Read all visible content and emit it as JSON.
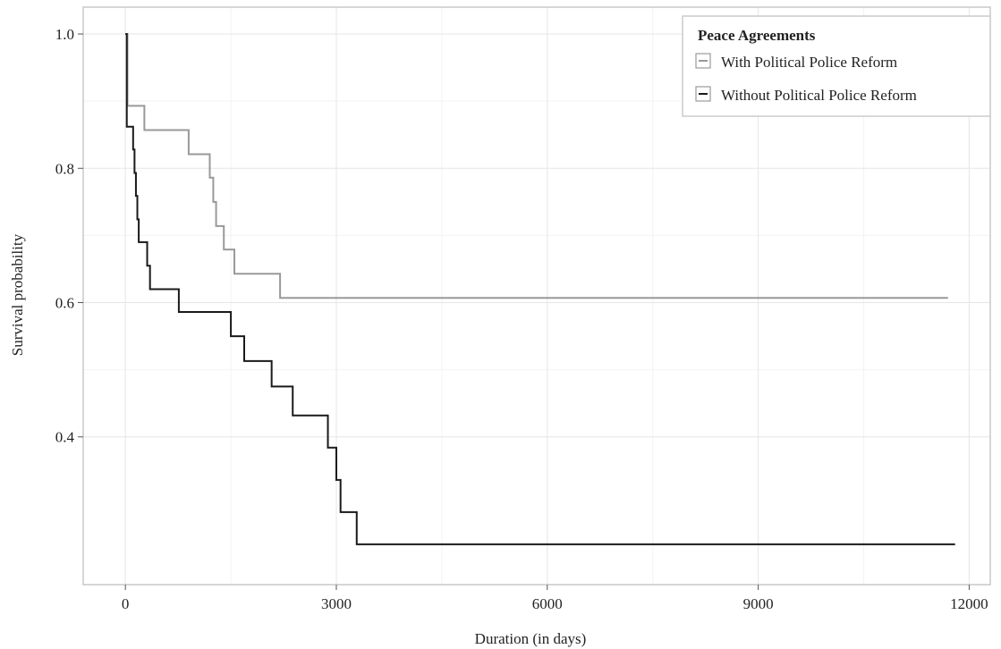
{
  "chart_data": {
    "type": "line",
    "step": true,
    "title": "",
    "xlabel": "Duration (in days)",
    "ylabel": "Survival probability",
    "xlim": [
      -600,
      12300
    ],
    "ylim": [
      0.18,
      1.04
    ],
    "xticks": [
      0,
      3000,
      6000,
      9000,
      12000
    ],
    "xtick_labels": [
      "0",
      "3000",
      "6000",
      "9000",
      "12000"
    ],
    "yticks": [
      0.4,
      0.6,
      0.8,
      1.0
    ],
    "ytick_labels": [
      "0.4",
      "0.6",
      "0.8",
      "1.0"
    ],
    "grid": true,
    "legend": {
      "title": "Peace Agreements",
      "position": "top-right"
    },
    "series": [
      {
        "name": "With Political Police Reform",
        "color": "#999999",
        "x": [
          0,
          30,
          270,
          900,
          1200,
          1250,
          1290,
          1400,
          1480,
          1550,
          2200,
          11700
        ],
        "y": [
          1.0,
          0.893,
          0.857,
          0.821,
          0.786,
          0.75,
          0.714,
          0.679,
          0.679,
          0.643,
          0.607,
          0.607
        ]
      },
      {
        "name": "Without Political Police Reform",
        "color": "#1a1a1a",
        "x": [
          0,
          20,
          110,
          130,
          150,
          170,
          190,
          310,
          350,
          760,
          1500,
          1690,
          2080,
          2380,
          2880,
          3000,
          3060,
          3290,
          11800
        ],
        "y": [
          1.0,
          0.862,
          0.828,
          0.793,
          0.759,
          0.724,
          0.69,
          0.655,
          0.62,
          0.586,
          0.55,
          0.513,
          0.475,
          0.432,
          0.384,
          0.336,
          0.288,
          0.24,
          0.24
        ]
      }
    ]
  }
}
